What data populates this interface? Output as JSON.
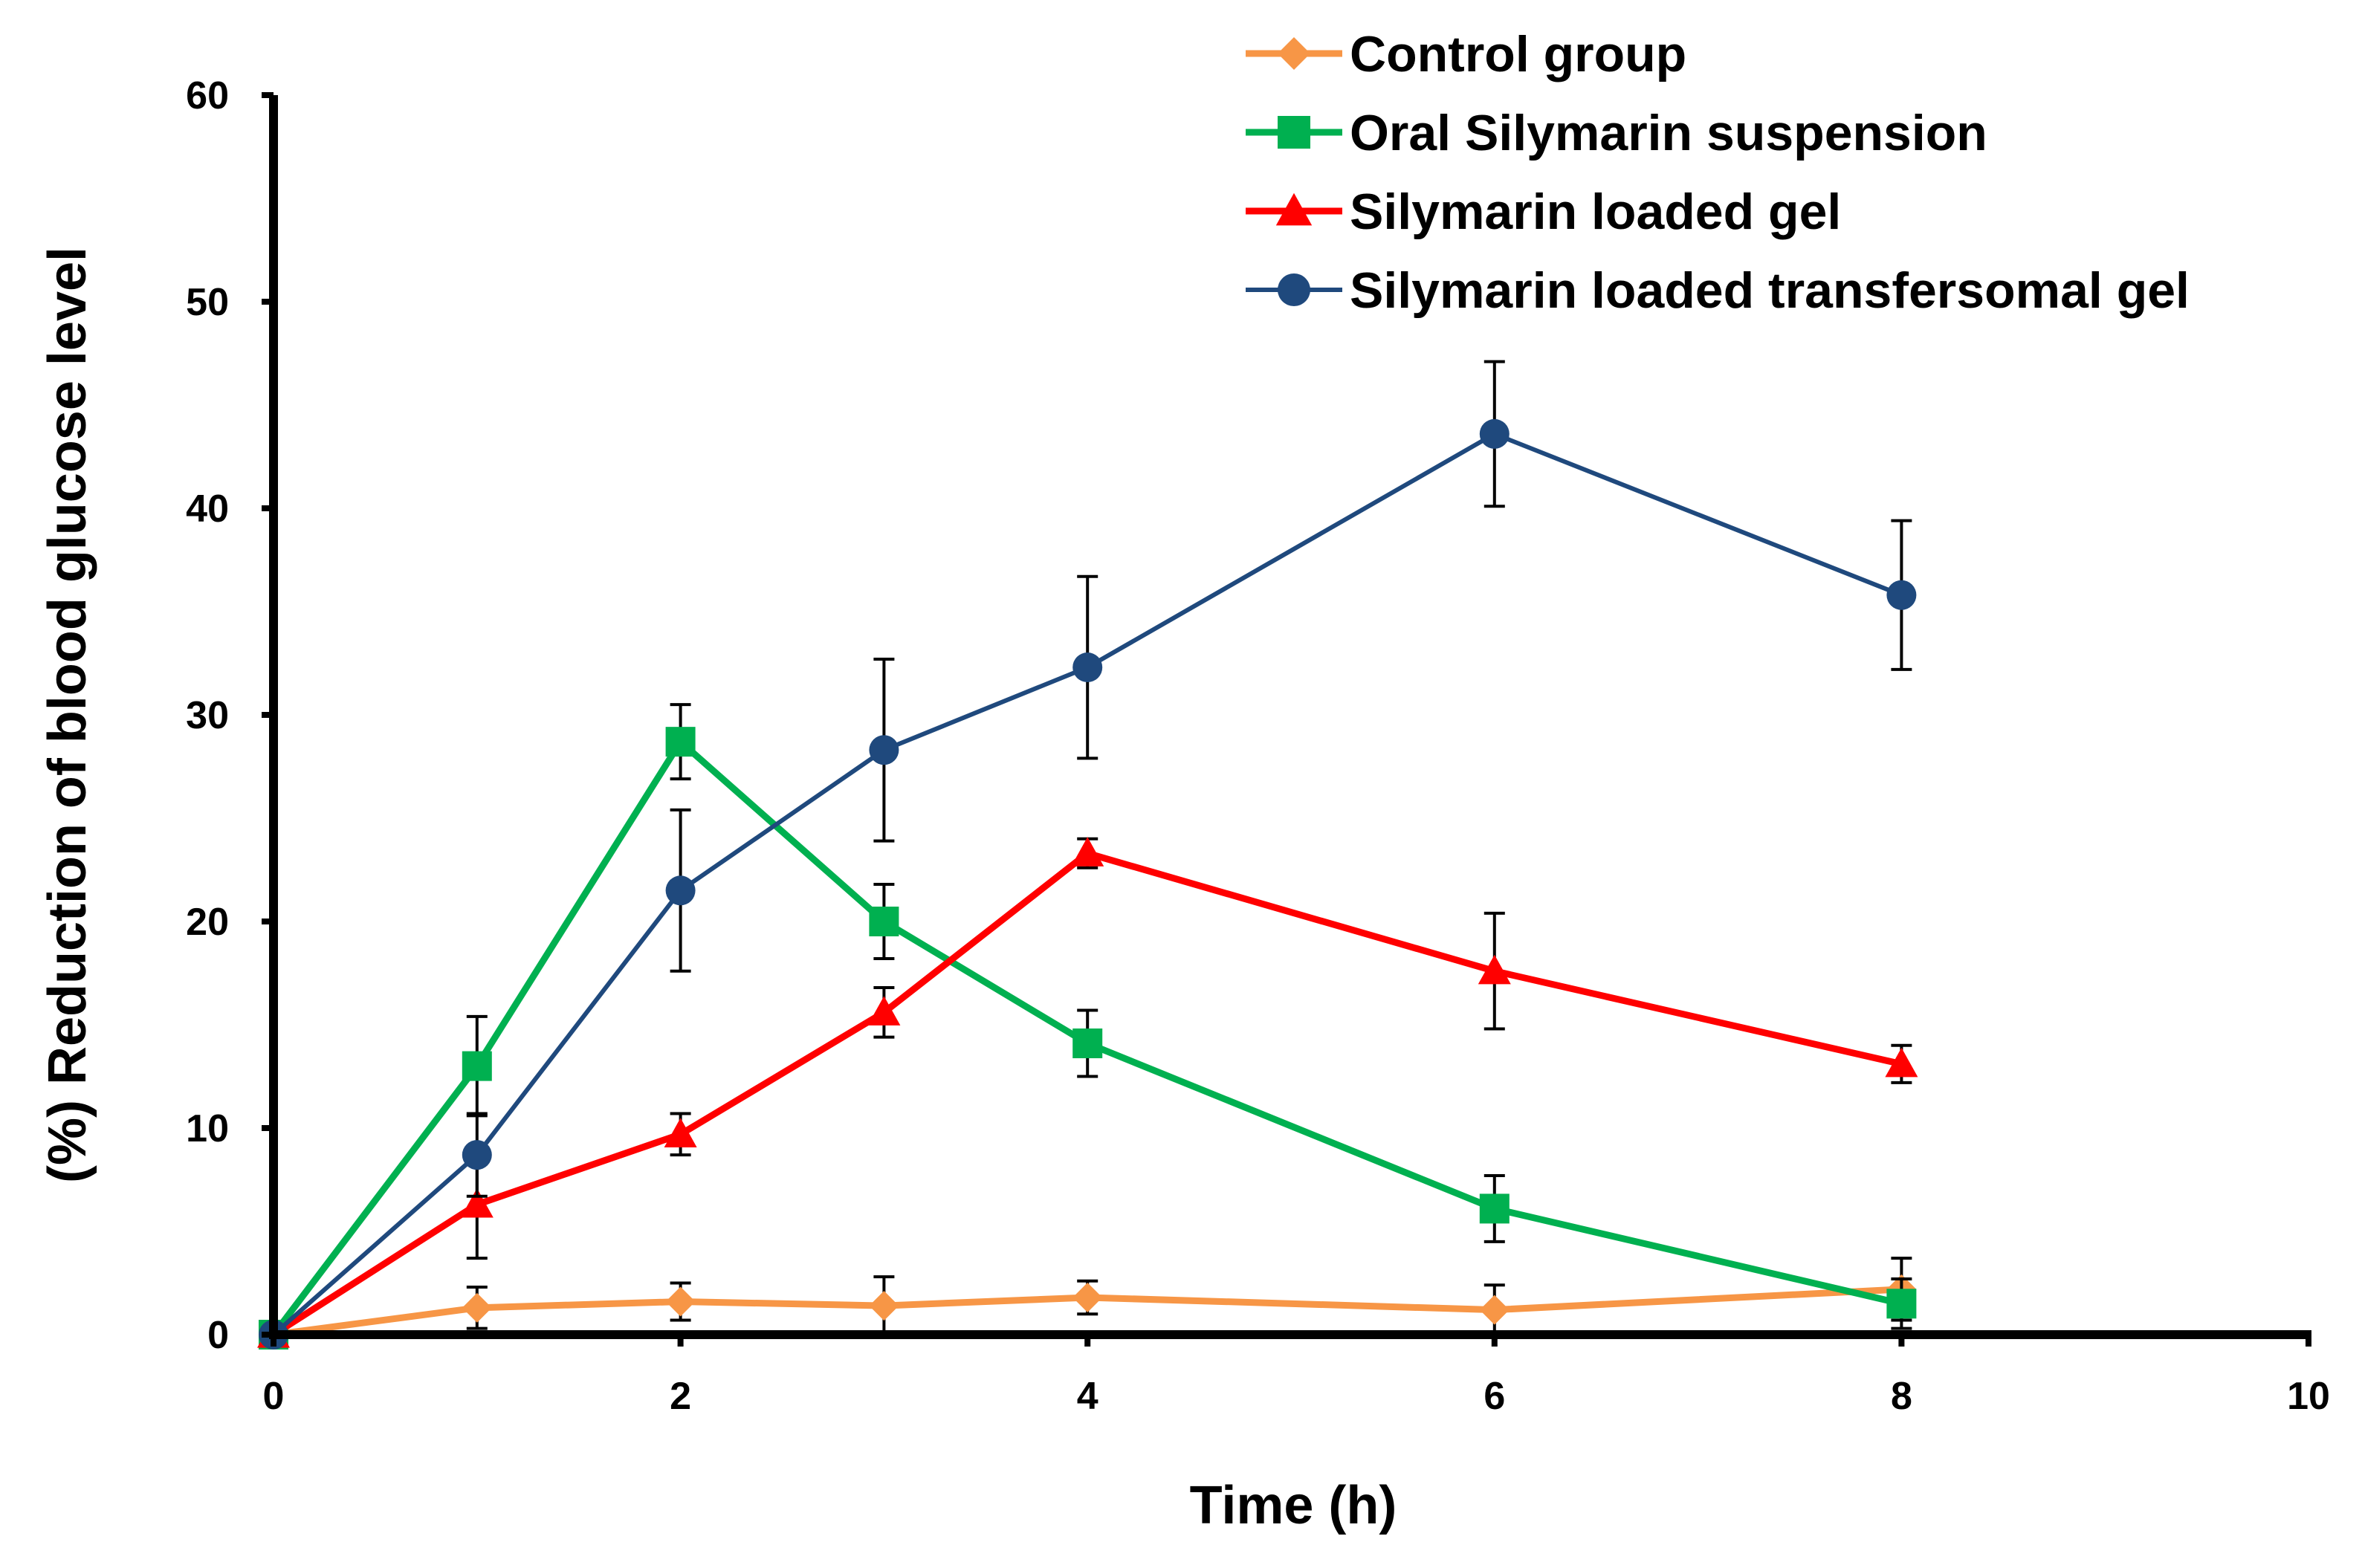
{
  "chart_data": {
    "type": "line",
    "title": "",
    "xlabel": "Time (h)",
    "ylabel": "(%) Reduction of blood glucose level",
    "xlim": [
      0,
      10
    ],
    "ylim": [
      0,
      60
    ],
    "x_ticks": [
      "0",
      "2",
      "4",
      "6",
      "8",
      "10"
    ],
    "y_ticks": [
      "0",
      "10",
      "20",
      "30",
      "40",
      "50",
      "60"
    ],
    "grid": false,
    "legend_position": "top-right",
    "series": [
      {
        "name": "Control group",
        "color": "#F79646",
        "marker": "diamond",
        "x": [
          0,
          1,
          2,
          3,
          4,
          6,
          8
        ],
        "y": [
          0,
          1.3,
          1.6,
          1.4,
          1.8,
          1.2,
          2.2
        ],
        "err": [
          0.2,
          1.0,
          0.9,
          1.4,
          0.8,
          1.2,
          1.5
        ]
      },
      {
        "name": "Oral Silymarin suspension",
        "color": "#00B050",
        "marker": "square",
        "x": [
          0,
          1,
          2,
          3,
          4,
          6,
          8
        ],
        "y": [
          0,
          13.0,
          28.7,
          20.0,
          14.1,
          6.1,
          1.5
        ],
        "err": [
          0.2,
          2.4,
          1.8,
          1.8,
          1.6,
          1.6,
          1.2
        ]
      },
      {
        "name": "Silymarin loaded gel",
        "color": "#FF0000",
        "marker": "triangle",
        "x": [
          0,
          1,
          2,
          3,
          4,
          6,
          8
        ],
        "y": [
          0,
          6.3,
          9.7,
          15.6,
          23.3,
          17.6,
          13.1
        ],
        "err": [
          0.2,
          2.6,
          1.0,
          1.2,
          0.7,
          2.8,
          0.9
        ]
      },
      {
        "name": "Silymarin loaded transfersomal gel",
        "color": "#1F497D",
        "marker": "circle",
        "x": [
          0,
          1,
          2,
          3,
          4,
          6,
          8
        ],
        "y": [
          0,
          8.7,
          21.5,
          28.3,
          32.3,
          43.6,
          35.8
        ],
        "err": [
          0.2,
          2.0,
          3.9,
          4.4,
          4.4,
          3.5,
          3.6
        ]
      }
    ]
  }
}
